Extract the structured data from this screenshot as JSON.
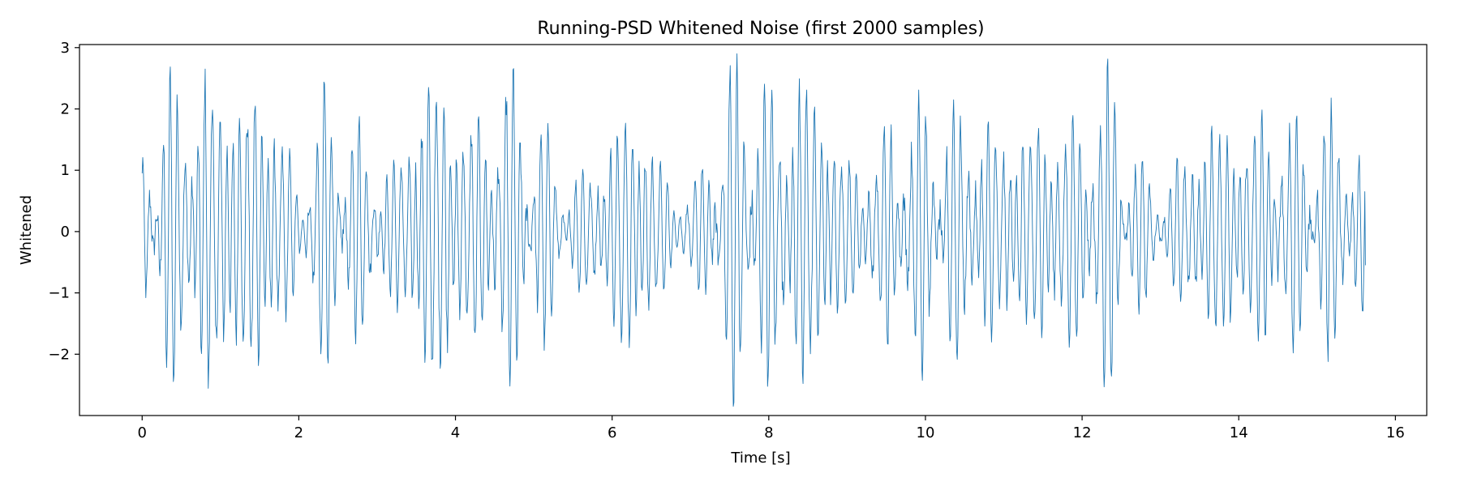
{
  "chart_data": {
    "type": "line",
    "title": "Running-PSD Whitened Noise (first 2000 samples)",
    "xlabel": "Time [s]",
    "ylabel": "Whitened",
    "xlim": [
      -0.8,
      16.4
    ],
    "ylim": [
      -3.0,
      3.05
    ],
    "xticks": [
      0,
      2,
      4,
      6,
      8,
      10,
      12,
      14,
      16
    ],
    "xtick_labels": [
      "0",
      "2",
      "4",
      "6",
      "8",
      "10",
      "12",
      "14",
      "16"
    ],
    "yticks": [
      -2,
      -1,
      0,
      1,
      2,
      3
    ],
    "ytick_labels": [
      "−2",
      "−1",
      "0",
      "1",
      "2",
      "3"
    ],
    "grid": false,
    "legend": "none",
    "series": [
      {
        "color": "#1f77b4",
        "x_start": 0.0,
        "x_step": 0.0078125,
        "n_points": 2000,
        "envelope_amplitude": {
          "t": [
            0.0,
            0.3,
            0.6,
            0.9,
            1.2,
            1.5,
            1.7,
            2.0,
            2.3,
            2.6,
            2.9,
            3.2,
            3.5,
            3.7,
            4.0,
            4.3,
            4.6,
            4.8,
            5.1,
            5.4,
            5.8,
            6.2,
            6.5,
            6.8,
            7.1,
            7.3,
            7.5,
            7.7,
            8.0,
            8.3,
            8.6,
            8.9,
            9.2,
            9.5,
            9.8,
            10.1,
            10.5,
            10.9,
            11.3,
            11.7,
            12.1,
            12.4,
            12.7,
            13.0,
            13.3,
            13.7,
            14.1,
            14.5,
            14.9,
            15.3,
            15.6
          ],
          "value": [
            1.3,
            2.3,
            2.0,
            2.5,
            2.2,
            2.3,
            2.0,
            0.6,
            2.1,
            1.8,
            1.3,
            1.0,
            2.0,
            2.5,
            2.1,
            1.7,
            2.4,
            2.2,
            1.7,
            0.7,
            1.1,
            2.1,
            1.5,
            0.5,
            0.8,
            1.6,
            2.5,
            2.6,
            2.2,
            2.3,
            2.4,
            1.4,
            0.9,
            1.6,
            2.0,
            1.9,
            1.8,
            1.6,
            1.7,
            1.7,
            1.9,
            2.4,
            1.2,
            0.6,
            1.2,
            1.8,
            1.7,
            1.8,
            1.6,
            1.8,
            1.2
          ]
        },
        "y_first": 0.95,
        "y_last": -0.55
      }
    ]
  }
}
